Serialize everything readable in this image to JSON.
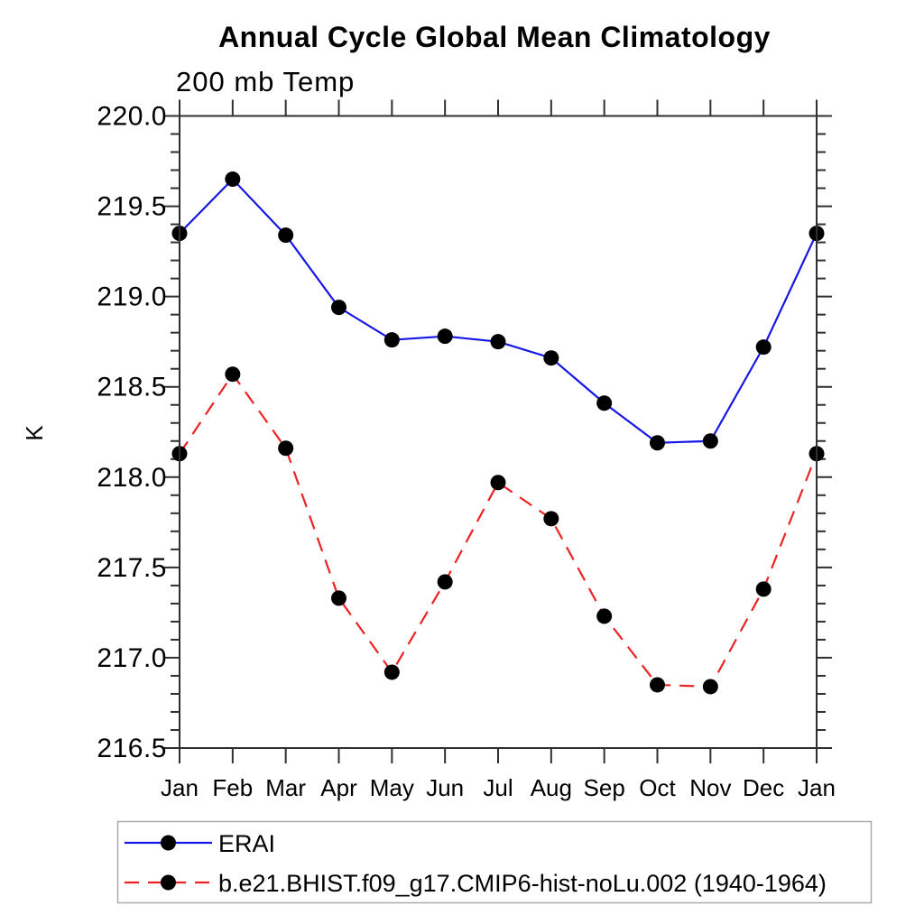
{
  "chart_data": {
    "type": "line",
    "title": "Annual Cycle Global Mean Climatology",
    "subtitle": "200 mb Temp",
    "ylabel": "K",
    "categories": [
      "Jan",
      "Feb",
      "Mar",
      "Apr",
      "May",
      "Jun",
      "Jul",
      "Aug",
      "Sep",
      "Oct",
      "Nov",
      "Dec",
      "Jan"
    ],
    "series": [
      {
        "name": "ERAI",
        "line_color": "#1717e8",
        "line_style": "solid",
        "marker": "filled-circle",
        "marker_color": "#000000",
        "values": [
          219.35,
          219.65,
          219.34,
          218.94,
          218.76,
          218.78,
          218.75,
          218.66,
          218.41,
          218.19,
          218.2,
          218.72,
          219.35
        ]
      },
      {
        "name": "b.e21.BHIST.f09_g17.CMIP6-hist-noLu.002 (1940-1964)",
        "line_color": "#ee2222",
        "line_style": "dashed",
        "marker": "filled-circle",
        "marker_color": "#000000",
        "values": [
          218.13,
          218.57,
          218.16,
          217.33,
          216.92,
          217.42,
          217.97,
          217.77,
          217.23,
          216.85,
          216.84,
          217.38,
          218.13
        ]
      }
    ],
    "ylim": [
      216.5,
      220.0
    ],
    "ytick_major_step": 0.5,
    "ytick_minor_step": 0.1,
    "ytick_labels": [
      "216.5",
      "217.0",
      "217.5",
      "218.0",
      "218.5",
      "219.0",
      "219.5",
      "220.0"
    ],
    "xlabel": "",
    "grid": false,
    "legend_position": "bottom-left",
    "axis_color": "#2f2f2f"
  }
}
